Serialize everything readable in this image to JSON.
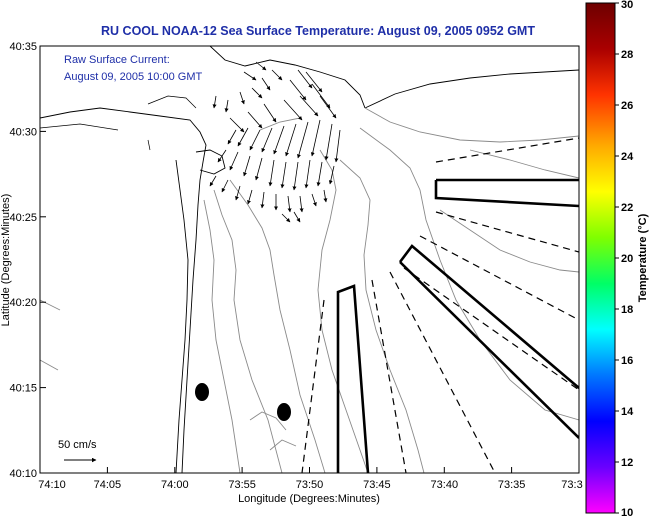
{
  "title": "RU COOL  NOAA-12  Sea Surface Temperature:  August 09, 2005 0952 GMT",
  "annotation": {
    "line1": "Raw Surface Current:",
    "line2": "August 09, 2005 10:00 GMT"
  },
  "scale_label": "50 cm/s",
  "x_axis": {
    "label": "Longitude (Degrees:Minutes)",
    "ticks": [
      "74:10",
      "74:05",
      "74:00",
      "73:55",
      "73:50",
      "73:45",
      "73:40",
      "73:35",
      "73:3"
    ]
  },
  "y_axis": {
    "label": "Latitude (Degrees:Minutes)",
    "ticks": [
      "40:35",
      "40:30",
      "40:25",
      "40:20",
      "40:15",
      "40:10"
    ]
  },
  "colorbar": {
    "label": "Temperature (°C)",
    "min": 10,
    "max": 30,
    "ticks": [
      "30",
      "28",
      "26",
      "24",
      "22",
      "20",
      "18",
      "16",
      "14",
      "12",
      "10"
    ],
    "colors": [
      "#ff00ff",
      "#6a00ff",
      "#0000ff",
      "#0077ff",
      "#00ffff",
      "#00ff66",
      "#7fff00",
      "#ffff00",
      "#ffaa00",
      "#ff3300",
      "#aa0000",
      "#6e0000"
    ]
  }
}
